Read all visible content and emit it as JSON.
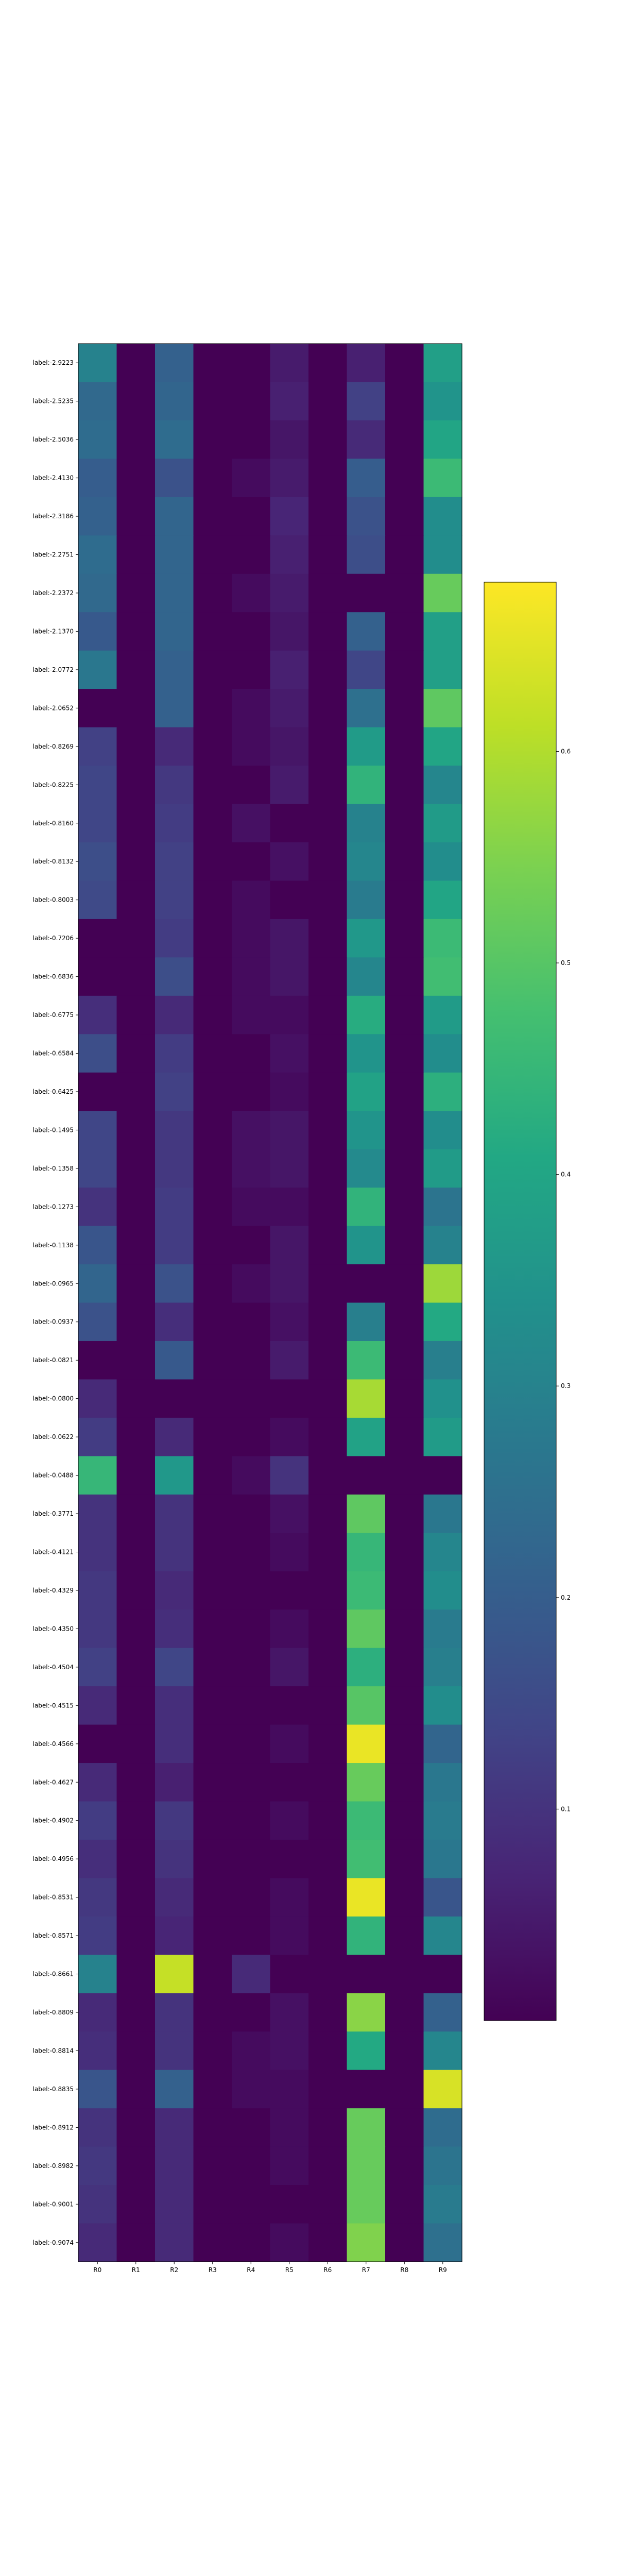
{
  "chart_data": {
    "type": "heatmap",
    "title": "",
    "xlabel": "",
    "ylabel": "",
    "colormap": "viridis",
    "value_range": [
      0.0,
      0.68
    ],
    "colorbar_ticks": [
      0.1,
      0.2,
      0.3,
      0.4,
      0.5,
      0.6
    ],
    "colorbar_tick_labels": [
      "0.1",
      "0.2",
      "0.3",
      "0.4",
      "0.5",
      "0.6"
    ],
    "columns": [
      "R0",
      "R1",
      "R2",
      "R3",
      "R4",
      "R5",
      "R6",
      "R7",
      "R8",
      "R9"
    ],
    "rows": [
      "label:-2.9223",
      "label:-2.5235",
      "label:-2.5036",
      "label:-2.4130",
      "label:-2.3186",
      "label:-2.2751",
      "label:-2.2372",
      "label:-2.1370",
      "label:-2.0772",
      "label:-2.0652",
      "label:-0.8269",
      "label:-0.8225",
      "label:-0.8160",
      "label:-0.8132",
      "label:-0.8003",
      "label:-0.7206",
      "label:-0.6836",
      "label:-0.6775",
      "label:-0.6584",
      "label:-0.6425",
      "label:-0.1495",
      "label:-0.1358",
      "label:-0.1273",
      "label:-0.1138",
      "label:-0.0965",
      "label:-0.0937",
      "label:-0.0821",
      "label:-0.0800",
      "label:-0.0622",
      "label:-0.0488",
      "label:-0.3771",
      "label:-0.4121",
      "label:-0.4329",
      "label:-0.4350",
      "label:-0.4504",
      "label:-0.4515",
      "label:-0.4566",
      "label:-0.4627",
      "label:-0.4902",
      "label:-0.4956",
      "label:-0.8531",
      "label:-0.8571",
      "label:-0.8661",
      "label:-0.8809",
      "label:-0.8814",
      "label:-0.8835",
      "label:-0.8912",
      "label:-0.8982",
      "label:-0.9001",
      "label:-0.9074"
    ],
    "values": [
      [
        0.3,
        0.0,
        0.21,
        0.0,
        0.0,
        0.05,
        0.0,
        0.06,
        0.0,
        0.38
      ],
      [
        0.23,
        0.0,
        0.22,
        0.0,
        0.0,
        0.06,
        0.0,
        0.13,
        0.0,
        0.35
      ],
      [
        0.24,
        0.0,
        0.24,
        0.0,
        0.0,
        0.04,
        0.0,
        0.08,
        0.0,
        0.4
      ],
      [
        0.2,
        0.0,
        0.17,
        0.0,
        0.02,
        0.05,
        0.0,
        0.2,
        0.0,
        0.46
      ],
      [
        0.21,
        0.0,
        0.22,
        0.0,
        0.0,
        0.07,
        0.0,
        0.17,
        0.0,
        0.33
      ],
      [
        0.24,
        0.0,
        0.22,
        0.0,
        0.0,
        0.06,
        0.0,
        0.16,
        0.0,
        0.33
      ],
      [
        0.23,
        0.0,
        0.22,
        0.0,
        0.02,
        0.05,
        0.0,
        0.0,
        0.0,
        0.52
      ],
      [
        0.19,
        0.0,
        0.22,
        0.0,
        0.0,
        0.04,
        0.0,
        0.21,
        0.0,
        0.38
      ],
      [
        0.27,
        0.0,
        0.21,
        0.0,
        0.0,
        0.06,
        0.0,
        0.14,
        0.0,
        0.38
      ],
      [
        0.0,
        0.0,
        0.21,
        0.0,
        0.02,
        0.05,
        0.0,
        0.25,
        0.0,
        0.51
      ],
      [
        0.13,
        0.0,
        0.08,
        0.0,
        0.02,
        0.04,
        0.0,
        0.37,
        0.0,
        0.4
      ],
      [
        0.14,
        0.0,
        0.11,
        0.0,
        0.0,
        0.05,
        0.0,
        0.44,
        0.0,
        0.31
      ],
      [
        0.14,
        0.0,
        0.12,
        0.0,
        0.03,
        0.0,
        0.0,
        0.3,
        0.0,
        0.37
      ],
      [
        0.16,
        0.0,
        0.13,
        0.0,
        0.0,
        0.03,
        0.0,
        0.31,
        0.0,
        0.33
      ],
      [
        0.15,
        0.0,
        0.13,
        0.0,
        0.02,
        0.0,
        0.0,
        0.28,
        0.0,
        0.4
      ],
      [
        0.0,
        0.0,
        0.12,
        0.0,
        0.02,
        0.04,
        0.0,
        0.36,
        0.0,
        0.46
      ],
      [
        0.0,
        0.0,
        0.16,
        0.0,
        0.02,
        0.04,
        0.0,
        0.31,
        0.0,
        0.47
      ],
      [
        0.09,
        0.0,
        0.08,
        0.0,
        0.02,
        0.02,
        0.0,
        0.42,
        0.0,
        0.37
      ],
      [
        0.16,
        0.0,
        0.12,
        0.0,
        0.0,
        0.03,
        0.0,
        0.35,
        0.0,
        0.33
      ],
      [
        0.0,
        0.0,
        0.13,
        0.0,
        0.0,
        0.02,
        0.0,
        0.39,
        0.0,
        0.43
      ],
      [
        0.14,
        0.0,
        0.11,
        0.0,
        0.03,
        0.04,
        0.0,
        0.35,
        0.0,
        0.33
      ],
      [
        0.14,
        0.0,
        0.11,
        0.0,
        0.03,
        0.04,
        0.0,
        0.32,
        0.0,
        0.37
      ],
      [
        0.1,
        0.0,
        0.12,
        0.0,
        0.02,
        0.02,
        0.0,
        0.44,
        0.0,
        0.26
      ],
      [
        0.18,
        0.0,
        0.12,
        0.0,
        0.0,
        0.04,
        0.0,
        0.35,
        0.0,
        0.3
      ],
      [
        0.22,
        0.0,
        0.17,
        0.0,
        0.02,
        0.04,
        0.0,
        0.0,
        0.0,
        0.58
      ],
      [
        0.17,
        0.0,
        0.09,
        0.0,
        0.0,
        0.03,
        0.0,
        0.29,
        0.0,
        0.41
      ],
      [
        0.0,
        0.0,
        0.19,
        0.0,
        0.0,
        0.05,
        0.0,
        0.46,
        0.0,
        0.29
      ],
      [
        0.08,
        0.0,
        0.0,
        0.0,
        0.0,
        0.0,
        0.0,
        0.59,
        0.0,
        0.34
      ],
      [
        0.12,
        0.0,
        0.08,
        0.0,
        0.0,
        0.02,
        0.0,
        0.39,
        0.0,
        0.37
      ],
      [
        0.45,
        0.0,
        0.36,
        0.0,
        0.02,
        0.1,
        0.0,
        0.0,
        0.0,
        0.0
      ],
      [
        0.1,
        0.0,
        0.1,
        0.0,
        0.0,
        0.03,
        0.0,
        0.51,
        0.0,
        0.27
      ],
      [
        0.1,
        0.0,
        0.1,
        0.0,
        0.0,
        0.02,
        0.0,
        0.45,
        0.0,
        0.31
      ],
      [
        0.11,
        0.0,
        0.08,
        0.0,
        0.0,
        0.0,
        0.0,
        0.46,
        0.0,
        0.33
      ],
      [
        0.11,
        0.0,
        0.09,
        0.0,
        0.0,
        0.02,
        0.0,
        0.51,
        0.0,
        0.28
      ],
      [
        0.13,
        0.0,
        0.14,
        0.0,
        0.0,
        0.04,
        0.0,
        0.43,
        0.0,
        0.29
      ],
      [
        0.08,
        0.0,
        0.09,
        0.0,
        0.0,
        0.0,
        0.0,
        0.5,
        0.0,
        0.33
      ],
      [
        0.0,
        0.0,
        0.09,
        0.0,
        0.0,
        0.02,
        0.0,
        0.66,
        0.0,
        0.22
      ],
      [
        0.08,
        0.0,
        0.06,
        0.0,
        0.0,
        0.0,
        0.0,
        0.52,
        0.0,
        0.27
      ],
      [
        0.12,
        0.0,
        0.11,
        0.0,
        0.0,
        0.02,
        0.0,
        0.46,
        0.0,
        0.28
      ],
      [
        0.09,
        0.0,
        0.1,
        0.0,
        0.0,
        0.0,
        0.0,
        0.47,
        0.0,
        0.27
      ],
      [
        0.11,
        0.0,
        0.08,
        0.0,
        0.0,
        0.02,
        0.0,
        0.66,
        0.0,
        0.18
      ],
      [
        0.12,
        0.0,
        0.07,
        0.0,
        0.0,
        0.02,
        0.0,
        0.44,
        0.0,
        0.31
      ],
      [
        0.3,
        0.0,
        0.62,
        0.0,
        0.08,
        0.0,
        0.0,
        0.0,
        0.0,
        0.0
      ],
      [
        0.08,
        0.0,
        0.1,
        0.0,
        0.0,
        0.03,
        0.0,
        0.56,
        0.0,
        0.21
      ],
      [
        0.09,
        0.0,
        0.1,
        0.0,
        0.02,
        0.03,
        0.0,
        0.41,
        0.0,
        0.31
      ],
      [
        0.18,
        0.0,
        0.21,
        0.0,
        0.02,
        0.02,
        0.0,
        0.0,
        0.0,
        0.64
      ],
      [
        0.1,
        0.0,
        0.08,
        0.0,
        0.0,
        0.02,
        0.0,
        0.52,
        0.0,
        0.24
      ],
      [
        0.11,
        0.0,
        0.08,
        0.0,
        0.0,
        0.02,
        0.0,
        0.52,
        0.0,
        0.26
      ],
      [
        0.1,
        0.0,
        0.08,
        0.0,
        0.0,
        0.0,
        0.0,
        0.52,
        0.0,
        0.28
      ],
      [
        0.08,
        0.0,
        0.08,
        0.0,
        0.0,
        0.02,
        0.0,
        0.55,
        0.0,
        0.25
      ]
    ]
  }
}
